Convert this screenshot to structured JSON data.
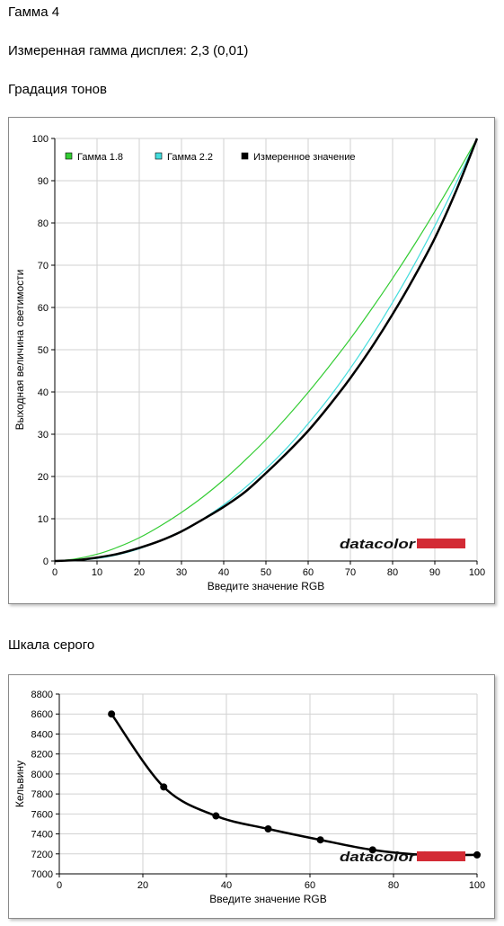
{
  "header": {
    "title": "Гамма 4",
    "measured_gamma": "Измеренная гамма дисплея: 2,3 (0,01)",
    "tone_section": "Градация тонов",
    "gray_section": "Шкала серого"
  },
  "logo": {
    "text": "datacolor",
    "bar_color": "#d32b35"
  },
  "chart_data": [
    {
      "type": "line",
      "x": [
        0,
        5,
        10,
        15,
        20,
        25,
        30,
        35,
        40,
        45,
        50,
        55,
        60,
        65,
        70,
        75,
        80,
        85,
        90,
        95,
        100
      ],
      "series": [
        {
          "name": "Гамма 1.8",
          "color": "#33cc33",
          "values": [
            0,
            0.5,
            1.6,
            3.3,
            5.5,
            8.3,
            11.5,
            15.1,
            19.2,
            23.8,
            28.7,
            34.1,
            39.9,
            46.1,
            52.6,
            59.6,
            66.9,
            74.6,
            82.7,
            91.2,
            100
          ]
        },
        {
          "name": "Гамма 2.2",
          "color": "#44dddd",
          "values": [
            0,
            0.1,
            0.6,
            1.5,
            2.9,
            4.8,
            7.1,
            9.9,
            13.3,
            17.3,
            21.8,
            26.8,
            32.5,
            38.7,
            45.6,
            53.1,
            61.2,
            69.9,
            79.3,
            89.3,
            100
          ]
        },
        {
          "name": "Измеренное значение",
          "color": "#000000",
          "values": [
            0,
            0.2,
            0.8,
            1.7,
            3.1,
            4.8,
            7,
            9.8,
            12.8,
            16.3,
            20.8,
            25.6,
            30.8,
            36.8,
            43.3,
            50.5,
            58.4,
            67,
            76.4,
            87.5,
            100
          ]
        }
      ],
      "xlabel": "Введите значение RGB",
      "ylabel": "Выходная величина светимости",
      "xlim": [
        0,
        100
      ],
      "ylim": [
        0,
        100
      ],
      "xticks": [
        "0",
        "10",
        "20",
        "30",
        "40",
        "50",
        "60",
        "70",
        "80",
        "90",
        "100"
      ],
      "yticks": [
        "0",
        "10",
        "20",
        "30",
        "40",
        "50",
        "60",
        "70",
        "80",
        "90",
        "100"
      ],
      "grid": true,
      "legend": "top"
    },
    {
      "type": "line",
      "x": [
        12.5,
        25,
        37.5,
        50,
        62.5,
        75,
        87.5,
        100
      ],
      "series": [
        {
          "color": "#000000",
          "values": [
            8600,
            7870,
            7580,
            7450,
            7340,
            7240,
            7190,
            7190
          ]
        }
      ],
      "xlabel": "Введите значение RGB",
      "ylabel": "Кельвину",
      "xlim": [
        0,
        100
      ],
      "ylim": [
        7000,
        8800
      ],
      "xticks": [
        "0",
        "20",
        "40",
        "60",
        "80",
        "100"
      ],
      "yticks": [
        "7000",
        "7200",
        "7400",
        "7600",
        "7800",
        "8000",
        "8200",
        "8400",
        "8600",
        "8800"
      ],
      "grid": true,
      "markers": true
    }
  ]
}
